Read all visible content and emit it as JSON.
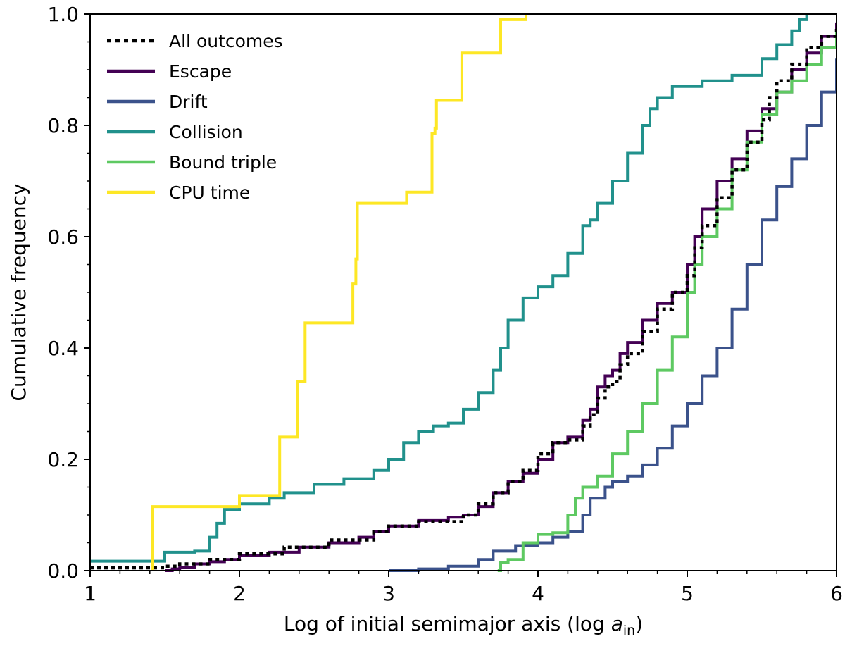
{
  "chart_data": {
    "type": "line",
    "subtype": "step-cdf",
    "xlabel": "Log of initial semimajor axis (log ",
    "xlabel_math": {
      "symbol": "a",
      "subscript": "in"
    },
    "xlabel_suffix": ")",
    "ylabel": "Cumulative frequency",
    "xlim": [
      1,
      6
    ],
    "ylim": [
      0,
      1
    ],
    "x_ticks": [
      "1",
      "2",
      "3",
      "4",
      "5",
      "6"
    ],
    "y_ticks": [
      "0.0",
      "0.2",
      "0.4",
      "0.6",
      "0.8",
      "1.0"
    ],
    "legend_position": "top-left",
    "grid": false,
    "series": [
      {
        "name": "All outcomes",
        "color": "#000000",
        "style": "dotted",
        "points": [
          [
            1.0,
            0.005
          ],
          [
            1.45,
            0.005
          ],
          [
            1.5,
            0.008
          ],
          [
            1.6,
            0.012
          ],
          [
            1.8,
            0.02
          ],
          [
            2.0,
            0.03
          ],
          [
            2.3,
            0.042
          ],
          [
            2.6,
            0.055
          ],
          [
            2.9,
            0.07
          ],
          [
            3.0,
            0.08
          ],
          [
            3.2,
            0.088
          ],
          [
            3.5,
            0.1
          ],
          [
            3.6,
            0.12
          ],
          [
            3.7,
            0.14
          ],
          [
            3.8,
            0.16
          ],
          [
            3.9,
            0.18
          ],
          [
            4.0,
            0.21
          ],
          [
            4.1,
            0.23
          ],
          [
            4.2,
            0.235
          ],
          [
            4.3,
            0.26
          ],
          [
            4.35,
            0.28
          ],
          [
            4.4,
            0.31
          ],
          [
            4.45,
            0.33
          ],
          [
            4.5,
            0.34
          ],
          [
            4.55,
            0.37
          ],
          [
            4.6,
            0.39
          ],
          [
            4.7,
            0.43
          ],
          [
            4.8,
            0.47
          ],
          [
            4.9,
            0.5
          ],
          [
            5.0,
            0.53
          ],
          [
            5.05,
            0.58
          ],
          [
            5.1,
            0.62
          ],
          [
            5.2,
            0.67
          ],
          [
            5.3,
            0.72
          ],
          [
            5.4,
            0.77
          ],
          [
            5.5,
            0.81
          ],
          [
            5.55,
            0.85
          ],
          [
            5.6,
            0.88
          ],
          [
            5.7,
            0.91
          ],
          [
            5.8,
            0.94
          ],
          [
            5.9,
            0.96
          ],
          [
            6.0,
            0.98
          ]
        ]
      },
      {
        "name": "Escape",
        "color": "#440154",
        "style": "solid",
        "points": [
          [
            1.5,
            0.0
          ],
          [
            1.55,
            0.003
          ],
          [
            1.6,
            0.006
          ],
          [
            1.7,
            0.012
          ],
          [
            1.8,
            0.016
          ],
          [
            1.9,
            0.02
          ],
          [
            2.0,
            0.027
          ],
          [
            2.2,
            0.033
          ],
          [
            2.4,
            0.042
          ],
          [
            2.6,
            0.05
          ],
          [
            2.8,
            0.06
          ],
          [
            2.9,
            0.07
          ],
          [
            3.0,
            0.08
          ],
          [
            3.2,
            0.09
          ],
          [
            3.4,
            0.096
          ],
          [
            3.5,
            0.1
          ],
          [
            3.6,
            0.115
          ],
          [
            3.7,
            0.14
          ],
          [
            3.8,
            0.16
          ],
          [
            3.9,
            0.175
          ],
          [
            4.0,
            0.2
          ],
          [
            4.1,
            0.23
          ],
          [
            4.2,
            0.24
          ],
          [
            4.3,
            0.27
          ],
          [
            4.35,
            0.29
          ],
          [
            4.4,
            0.33
          ],
          [
            4.45,
            0.35
          ],
          [
            4.5,
            0.36
          ],
          [
            4.55,
            0.39
          ],
          [
            4.6,
            0.41
          ],
          [
            4.7,
            0.45
          ],
          [
            4.8,
            0.48
          ],
          [
            4.9,
            0.5
          ],
          [
            5.0,
            0.55
          ],
          [
            5.05,
            0.6
          ],
          [
            5.1,
            0.65
          ],
          [
            5.2,
            0.7
          ],
          [
            5.3,
            0.74
          ],
          [
            5.4,
            0.79
          ],
          [
            5.5,
            0.83
          ],
          [
            5.6,
            0.86
          ],
          [
            5.7,
            0.9
          ],
          [
            5.8,
            0.93
          ],
          [
            5.9,
            0.96
          ],
          [
            6.0,
            0.985
          ]
        ]
      },
      {
        "name": "Drift",
        "color": "#3b528b",
        "style": "solid",
        "points": [
          [
            3.0,
            0.0
          ],
          [
            3.2,
            0.003
          ],
          [
            3.4,
            0.008
          ],
          [
            3.6,
            0.02
          ],
          [
            3.7,
            0.035
          ],
          [
            3.85,
            0.045
          ],
          [
            4.0,
            0.05
          ],
          [
            4.1,
            0.06
          ],
          [
            4.2,
            0.07
          ],
          [
            4.3,
            0.1
          ],
          [
            4.35,
            0.13
          ],
          [
            4.45,
            0.15
          ],
          [
            4.5,
            0.16
          ],
          [
            4.6,
            0.17
          ],
          [
            4.7,
            0.19
          ],
          [
            4.8,
            0.22
          ],
          [
            4.9,
            0.26
          ],
          [
            5.0,
            0.3
          ],
          [
            5.1,
            0.35
          ],
          [
            5.2,
            0.4
          ],
          [
            5.3,
            0.47
          ],
          [
            5.4,
            0.55
          ],
          [
            5.5,
            0.63
          ],
          [
            5.6,
            0.69
          ],
          [
            5.7,
            0.74
          ],
          [
            5.8,
            0.8
          ],
          [
            5.9,
            0.86
          ],
          [
            6.0,
            0.92
          ]
        ]
      },
      {
        "name": "Collision",
        "color": "#21918c",
        "style": "solid",
        "points": [
          [
            1.0,
            0.017
          ],
          [
            1.45,
            0.017
          ],
          [
            1.5,
            0.033
          ],
          [
            1.7,
            0.035
          ],
          [
            1.8,
            0.06
          ],
          [
            1.85,
            0.085
          ],
          [
            1.9,
            0.11
          ],
          [
            2.0,
            0.12
          ],
          [
            2.2,
            0.13
          ],
          [
            2.3,
            0.14
          ],
          [
            2.5,
            0.155
          ],
          [
            2.7,
            0.165
          ],
          [
            2.9,
            0.18
          ],
          [
            3.0,
            0.2
          ],
          [
            3.1,
            0.23
          ],
          [
            3.2,
            0.25
          ],
          [
            3.3,
            0.26
          ],
          [
            3.4,
            0.265
          ],
          [
            3.5,
            0.29
          ],
          [
            3.6,
            0.32
          ],
          [
            3.7,
            0.36
          ],
          [
            3.75,
            0.4
          ],
          [
            3.8,
            0.45
          ],
          [
            3.9,
            0.49
          ],
          [
            4.0,
            0.51
          ],
          [
            4.1,
            0.53
          ],
          [
            4.2,
            0.57
          ],
          [
            4.3,
            0.62
          ],
          [
            4.35,
            0.63
          ],
          [
            4.4,
            0.66
          ],
          [
            4.5,
            0.7
          ],
          [
            4.6,
            0.75
          ],
          [
            4.7,
            0.8
          ],
          [
            4.75,
            0.83
          ],
          [
            4.8,
            0.85
          ],
          [
            4.9,
            0.87
          ],
          [
            5.1,
            0.88
          ],
          [
            5.3,
            0.89
          ],
          [
            5.5,
            0.92
          ],
          [
            5.6,
            0.945
          ],
          [
            5.7,
            0.97
          ],
          [
            5.75,
            0.99
          ],
          [
            5.8,
            1.0
          ],
          [
            6.0,
            1.0
          ]
        ]
      },
      {
        "name": "Bound triple",
        "color": "#5ec962",
        "style": "solid",
        "points": [
          [
            3.73,
            0.0
          ],
          [
            3.75,
            0.015
          ],
          [
            3.8,
            0.02
          ],
          [
            3.9,
            0.05
          ],
          [
            4.0,
            0.065
          ],
          [
            4.1,
            0.068
          ],
          [
            4.2,
            0.1
          ],
          [
            4.25,
            0.13
          ],
          [
            4.3,
            0.15
          ],
          [
            4.4,
            0.17
          ],
          [
            4.5,
            0.21
          ],
          [
            4.6,
            0.25
          ],
          [
            4.7,
            0.3
          ],
          [
            4.8,
            0.36
          ],
          [
            4.9,
            0.42
          ],
          [
            5.0,
            0.5
          ],
          [
            5.05,
            0.55
          ],
          [
            5.1,
            0.6
          ],
          [
            5.2,
            0.65
          ],
          [
            5.3,
            0.72
          ],
          [
            5.4,
            0.77
          ],
          [
            5.5,
            0.82
          ],
          [
            5.6,
            0.86
          ],
          [
            5.7,
            0.88
          ],
          [
            5.8,
            0.91
          ],
          [
            5.9,
            0.94
          ],
          [
            6.0,
            0.97
          ]
        ]
      },
      {
        "name": "CPU time",
        "color": "#fde725",
        "style": "solid",
        "points": [
          [
            1.42,
            0.0
          ],
          [
            1.42,
            0.115
          ],
          [
            2.0,
            0.115
          ],
          [
            2.0,
            0.135
          ],
          [
            2.27,
            0.135
          ],
          [
            2.27,
            0.24
          ],
          [
            2.39,
            0.24
          ],
          [
            2.39,
            0.34
          ],
          [
            2.44,
            0.34
          ],
          [
            2.44,
            0.445
          ],
          [
            2.76,
            0.445
          ],
          [
            2.76,
            0.515
          ],
          [
            2.78,
            0.515
          ],
          [
            2.78,
            0.56
          ],
          [
            2.79,
            0.56
          ],
          [
            2.79,
            0.66
          ],
          [
            3.12,
            0.66
          ],
          [
            3.12,
            0.68
          ],
          [
            3.29,
            0.68
          ],
          [
            3.29,
            0.785
          ],
          [
            3.31,
            0.785
          ],
          [
            3.31,
            0.795
          ],
          [
            3.32,
            0.795
          ],
          [
            3.32,
            0.845
          ],
          [
            3.49,
            0.845
          ],
          [
            3.49,
            0.93
          ],
          [
            3.75,
            0.93
          ],
          [
            3.75,
            0.99
          ],
          [
            3.92,
            0.99
          ],
          [
            3.92,
            1.0
          ]
        ]
      }
    ]
  }
}
